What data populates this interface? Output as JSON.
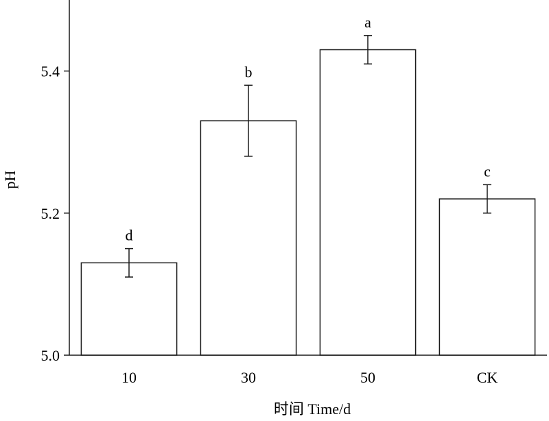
{
  "chart_data": {
    "type": "bar",
    "categories": [
      "10",
      "30",
      "50",
      "CK"
    ],
    "values": [
      5.13,
      5.33,
      5.43,
      5.22
    ],
    "errors": [
      0.02,
      0.05,
      0.02,
      0.02
    ],
    "significance_letters": [
      "d",
      "b",
      "a",
      "c"
    ],
    "ylabel": "pH",
    "xlabel": "时间 Time/d",
    "ylim": [
      5.0,
      5.5
    ],
    "yticks": [
      5.0,
      5.2,
      5.4
    ],
    "ytick_labels": [
      "5.0",
      "5.2",
      "5.4"
    ],
    "grid": false,
    "legend": "none",
    "colors": {
      "bar_fill": "#ffffff",
      "bar_stroke": "#1a1a1a",
      "axis": "#1a1a1a"
    }
  }
}
